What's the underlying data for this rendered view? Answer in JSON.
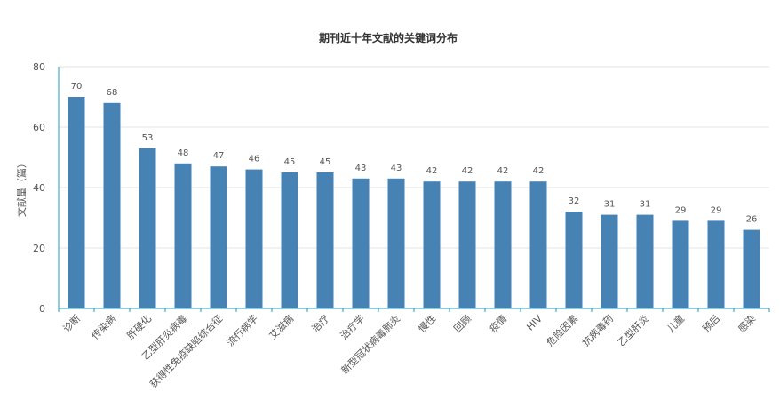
{
  "chart_data": {
    "type": "bar",
    "title": "期刊近十年文献的关键词分布",
    "xlabel": "",
    "ylabel": "文献量（篇）",
    "ylim": [
      0,
      80
    ],
    "yticks": [
      0,
      20,
      40,
      60,
      80
    ],
    "grid": true,
    "bar_color": "#4682b4",
    "axis_color": "#1d9eb8",
    "categories": [
      "诊断",
      "传染病",
      "肝硬化",
      "乙型肝炎病毒",
      "获得性免疫缺陷综合征",
      "流行病学",
      "艾滋病",
      "治疗",
      "治疗学",
      "新型冠状病毒肺炎",
      "慢性",
      "回顾",
      "疫情",
      "HIV",
      "危险因素",
      "抗病毒药",
      "乙型肝炎",
      "儿童",
      "预后",
      "感染"
    ],
    "values": [
      70,
      68,
      53,
      48,
      47,
      46,
      45,
      45,
      43,
      43,
      42,
      42,
      42,
      42,
      32,
      31,
      31,
      29,
      29,
      26
    ]
  }
}
